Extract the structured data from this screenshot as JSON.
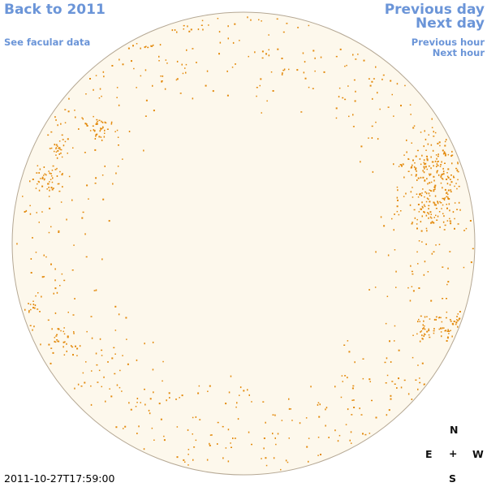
{
  "nav": {
    "back_year": "Back to 2011",
    "facular": "See facular data",
    "prev_day": "Previous day",
    "next_day": "Next day",
    "prev_hour": "Previous hour",
    "next_hour": "Next hour"
  },
  "compass": {
    "north": "N",
    "south": "S",
    "east": "E",
    "west": "W",
    "center": "+"
  },
  "timestamp": "2011-10-27T17:59:00",
  "colors": {
    "disk_fill": "#fdf8ec",
    "disk_edge": "#b5a894",
    "facula": "#e38a0d",
    "link": "#6b95d8"
  }
}
